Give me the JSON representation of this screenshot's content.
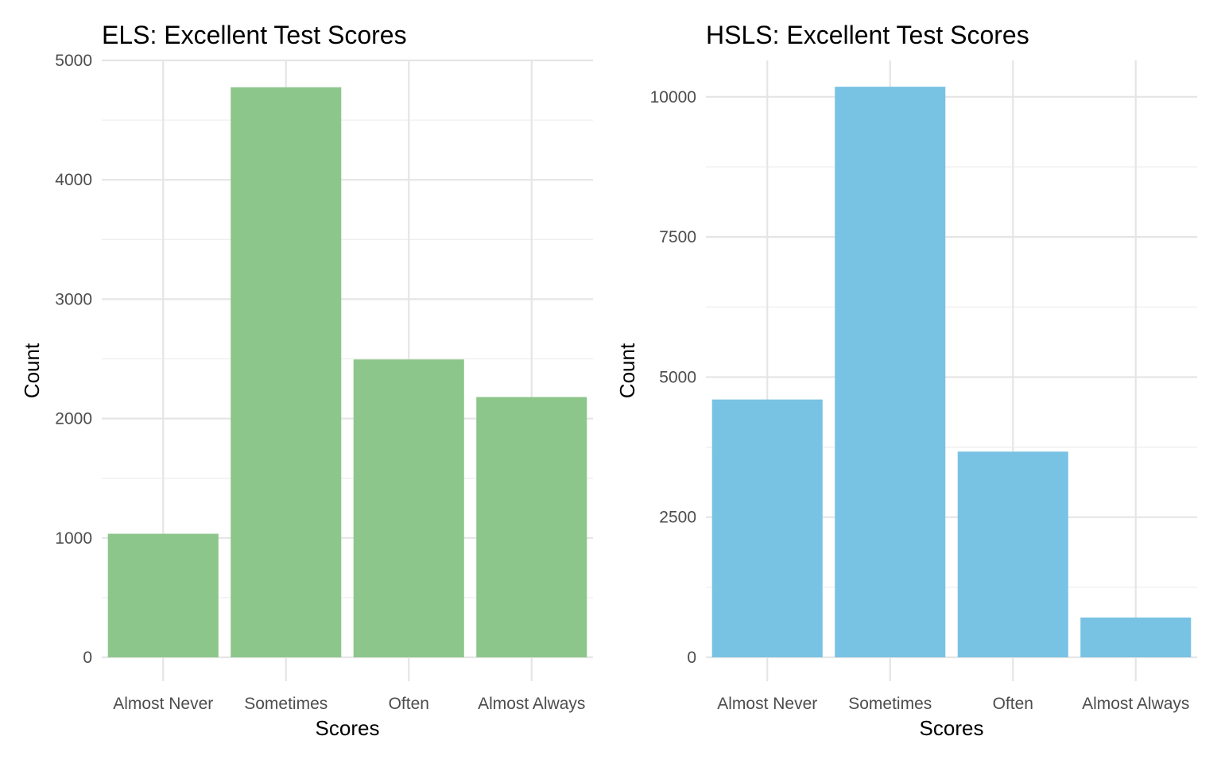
{
  "chart_data": [
    {
      "type": "bar",
      "title": "ELS: Excellent Test Scores",
      "xlabel": "Scores",
      "ylabel": "Count",
      "categories": [
        "Almost Never",
        "Sometimes",
        "Often",
        "Almost Always"
      ],
      "values": [
        1035,
        4775,
        2495,
        2180
      ],
      "ylim": [
        0,
        5000
      ],
      "yticks": [
        0,
        1000,
        2000,
        3000,
        4000,
        5000
      ],
      "ytick_labels": [
        "0",
        "1000",
        "2000",
        "3000",
        "4000",
        "5000"
      ],
      "grid": true,
      "bar_color": "#8CC68A"
    },
    {
      "type": "bar",
      "title": "HSLS: Excellent Test Scores",
      "xlabel": "Scores",
      "ylabel": "Count",
      "categories": [
        "Almost Never",
        "Sometimes",
        "Often",
        "Almost Always"
      ],
      "values": [
        4600,
        10180,
        3670,
        710
      ],
      "ylim": [
        0,
        10650
      ],
      "yticks": [
        0,
        2500,
        5000,
        7500,
        10000
      ],
      "ytick_labels": [
        "0",
        "2500",
        "5000",
        "7500",
        "10000"
      ],
      "grid": true,
      "bar_color": "#78C2E4"
    }
  ]
}
